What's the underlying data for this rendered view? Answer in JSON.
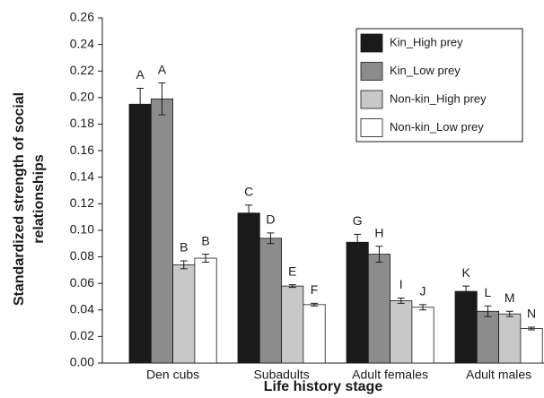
{
  "chart_data": {
    "type": "bar",
    "ylabel": [
      "Standardized strength of social",
      "relationships"
    ],
    "xlabel": "Life history stage",
    "categories": [
      "Den cubs",
      "Subadults",
      "Adult females",
      "Adult males"
    ],
    "series": [
      {
        "name": "Kin_High prey",
        "color": "#1a1a1a",
        "values": [
          0.195,
          0.113,
          0.091,
          0.054
        ],
        "errors": [
          0.012,
          0.006,
          0.006,
          0.004
        ],
        "letters": [
          "A",
          "C",
          "G",
          "K"
        ]
      },
      {
        "name": "Kin_Low prey",
        "color": "#8c8c8c",
        "values": [
          0.199,
          0.094,
          0.082,
          0.039
        ],
        "errors": [
          0.012,
          0.004,
          0.006,
          0.004
        ],
        "letters": [
          "A",
          "D",
          "H",
          "L"
        ]
      },
      {
        "name": "Non-kin_High prey",
        "color": "#c8c8c8",
        "values": [
          0.074,
          0.058,
          0.047,
          0.037
        ],
        "errors": [
          0.003,
          0.001,
          0.002,
          0.002
        ],
        "letters": [
          "B",
          "E",
          "I",
          "M"
        ]
      },
      {
        "name": "Non-kin_Low prey",
        "color": "#ffffff",
        "values": [
          0.079,
          0.044,
          0.042,
          0.026
        ],
        "errors": [
          0.003,
          0.001,
          0.002,
          0.001
        ],
        "letters": [
          "B",
          "F",
          "J",
          "N"
        ]
      }
    ],
    "ylim": [
      0,
      0.26
    ],
    "yticks": [
      {
        "value": 0,
        "label": "0.00"
      },
      {
        "value": 0.02,
        "label": "0.02"
      },
      {
        "value": 0.04,
        "label": "0.04"
      },
      {
        "value": 0.06,
        "label": "0.06"
      },
      {
        "value": 0.08,
        "label": "0.08"
      },
      {
        "value": 0.1,
        "label": "0.10"
      },
      {
        "value": 0.12,
        "label": "0.12"
      },
      {
        "value": 0.14,
        "label": "0.14"
      },
      {
        "value": 0.16,
        "label": "0.16"
      },
      {
        "value": 0.18,
        "label": "0.18"
      },
      {
        "value": 0.2,
        "label": "0.20"
      },
      {
        "value": 0.22,
        "label": "0.22"
      },
      {
        "value": 0.24,
        "label": "0.24"
      },
      {
        "value": 0.26,
        "label": "0.26"
      }
    ],
    "legend": "upper right"
  }
}
